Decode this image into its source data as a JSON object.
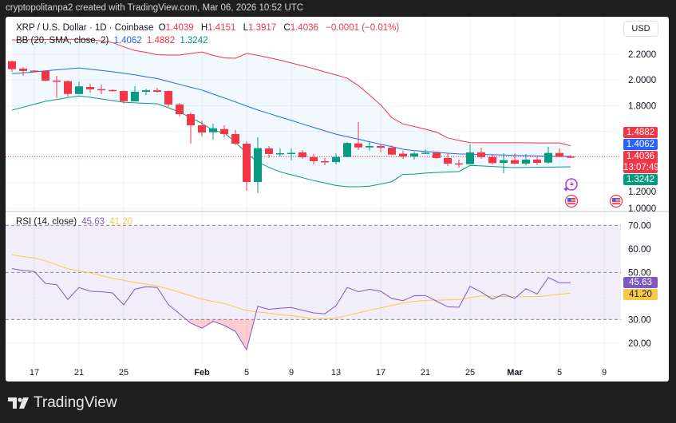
{
  "header": {
    "credit": "cryptopolitanpa2 created with TradingView.com, Mar 06, 2026 10:52 UTC"
  },
  "legend": {
    "symbol": "XRP / U.S. Dollar · 1D · Coinbase",
    "o_label": "O",
    "o": "1.4039",
    "h_label": "H",
    "h": "1.4151",
    "l_label": "L",
    "l": "1.3917",
    "c_label": "C",
    "c": "1.4036",
    "change": "−0.0001 (−0.01%)",
    "bb_label": "BB (20, SMA, close, 2)",
    "bb_basis": "1.4062",
    "bb_upper": "1.4882",
    "bb_lower": "1.3242",
    "rsi_label": "RSI (14, close)",
    "rsi_value": "45.63",
    "rsi_ma": "41.20"
  },
  "currency_button": "USD",
  "price_axis": {
    "ticks": [
      "2.2000",
      "2.0000",
      "1.8000",
      "1.2000",
      "1.0000"
    ]
  },
  "rsi_axis": {
    "ticks": [
      "70.00",
      "60.00",
      "50.00",
      "30.00",
      "20.00"
    ]
  },
  "badges": {
    "bb_upper": "1.4882",
    "bb_basis": "1.4062",
    "last_price": "1.4036",
    "countdown": "13:07:49",
    "bb_lower": "1.3242",
    "rsi": "45.63",
    "rsi_ma": "41.20"
  },
  "time_axis": [
    {
      "label": "17",
      "date": "2026-01-17"
    },
    {
      "label": "21",
      "date": "2026-01-21"
    },
    {
      "label": "25",
      "date": "2026-01-25"
    },
    {
      "label": "Feb",
      "date": "2026-02-01",
      "bold": true
    },
    {
      "label": "5",
      "date": "2026-02-05"
    },
    {
      "label": "9",
      "date": "2026-02-09"
    },
    {
      "label": "13",
      "date": "2026-02-13"
    },
    {
      "label": "17",
      "date": "2026-02-17"
    },
    {
      "label": "21",
      "date": "2026-02-21"
    },
    {
      "label": "25",
      "date": "2026-02-25"
    },
    {
      "label": "Mar",
      "date": "2026-03-01",
      "bold": true
    },
    {
      "label": "5",
      "date": "2026-03-05"
    },
    {
      "label": "9",
      "date": "2026-03-09"
    }
  ],
  "event_icons": [
    "lightning-event-icon",
    "us-flag-event-icon",
    "us-flag-event-icon"
  ],
  "brand": "TradingView",
  "colors": {
    "up": "#089981",
    "down": "#f23645",
    "bb_basis": "#2962ff",
    "bb_upper": "#f23645",
    "bb_lower": "#089981",
    "rsi": "#7e57c2",
    "rsi_ma": "#f7c948"
  },
  "chart_data": {
    "type": "candlestick",
    "price_range": [
      1.0,
      2.2
    ],
    "rsi_range": [
      10,
      80
    ],
    "rsi_bands": [
      70,
      50,
      30
    ],
    "candles": [
      {
        "date": "2026-01-15",
        "o": 2.146,
        "h": 2.15,
        "l": 2.063,
        "c": 2.084
      },
      {
        "date": "2026-01-16",
        "o": 2.088,
        "h": 2.101,
        "l": 2.032,
        "c": 2.07
      },
      {
        "date": "2026-01-17",
        "o": 2.073,
        "h": 2.076,
        "l": 2.06,
        "c": 2.066
      },
      {
        "date": "2026-01-18",
        "o": 2.07,
        "h": 2.07,
        "l": 1.989,
        "c": 1.995
      },
      {
        "date": "2026-01-19",
        "o": 1.995,
        "h": 2.032,
        "l": 1.86,
        "c": 1.989
      },
      {
        "date": "2026-01-20",
        "o": 1.991,
        "h": 1.995,
        "l": 1.871,
        "c": 1.891
      },
      {
        "date": "2026-01-21",
        "o": 1.891,
        "h": 1.987,
        "l": 1.888,
        "c": 1.95
      },
      {
        "date": "2026-01-22",
        "o": 1.945,
        "h": 1.97,
        "l": 1.902,
        "c": 1.927
      },
      {
        "date": "2026-01-23",
        "o": 1.929,
        "h": 1.964,
        "l": 1.889,
        "c": 1.925
      },
      {
        "date": "2026-01-24",
        "o": 1.922,
        "h": 1.927,
        "l": 1.908,
        "c": 1.914
      },
      {
        "date": "2026-01-25",
        "o": 1.914,
        "h": 1.92,
        "l": 1.815,
        "c": 1.835
      },
      {
        "date": "2026-01-26",
        "o": 1.834,
        "h": 1.952,
        "l": 1.834,
        "c": 1.908
      },
      {
        "date": "2026-01-27",
        "o": 1.908,
        "h": 1.933,
        "l": 1.883,
        "c": 1.92
      },
      {
        "date": "2026-01-28",
        "o": 1.92,
        "h": 1.939,
        "l": 1.902,
        "c": 1.908
      },
      {
        "date": "2026-01-29",
        "o": 1.914,
        "h": 1.92,
        "l": 1.79,
        "c": 1.809
      },
      {
        "date": "2026-01-30",
        "o": 1.809,
        "h": 1.821,
        "l": 1.716,
        "c": 1.734
      },
      {
        "date": "2026-01-31",
        "o": 1.734,
        "h": 1.747,
        "l": 1.504,
        "c": 1.647
      },
      {
        "date": "2026-02-01",
        "o": 1.647,
        "h": 1.684,
        "l": 1.56,
        "c": 1.591
      },
      {
        "date": "2026-02-02",
        "o": 1.593,
        "h": 1.66,
        "l": 1.536,
        "c": 1.624
      },
      {
        "date": "2026-02-03",
        "o": 1.618,
        "h": 1.647,
        "l": 1.554,
        "c": 1.579
      },
      {
        "date": "2026-02-04",
        "o": 1.579,
        "h": 1.61,
        "l": 1.492,
        "c": 1.504
      },
      {
        "date": "2026-02-05",
        "o": 1.504,
        "h": 1.523,
        "l": 1.138,
        "c": 1.206
      },
      {
        "date": "2026-02-06",
        "o": 1.206,
        "h": 1.554,
        "l": 1.119,
        "c": 1.469
      },
      {
        "date": "2026-02-07",
        "o": 1.467,
        "h": 1.486,
        "l": 1.393,
        "c": 1.424
      },
      {
        "date": "2026-02-08",
        "o": 1.424,
        "h": 1.467,
        "l": 1.405,
        "c": 1.43
      },
      {
        "date": "2026-02-09",
        "o": 1.43,
        "h": 1.467,
        "l": 1.374,
        "c": 1.433
      },
      {
        "date": "2026-02-10",
        "o": 1.436,
        "h": 1.455,
        "l": 1.386,
        "c": 1.399
      },
      {
        "date": "2026-02-11",
        "o": 1.399,
        "h": 1.424,
        "l": 1.343,
        "c": 1.368
      },
      {
        "date": "2026-02-12",
        "o": 1.368,
        "h": 1.393,
        "l": 1.337,
        "c": 1.361
      },
      {
        "date": "2026-02-13",
        "o": 1.361,
        "h": 1.43,
        "l": 1.343,
        "c": 1.401
      },
      {
        "date": "2026-02-14",
        "o": 1.401,
        "h": 1.517,
        "l": 1.399,
        "c": 1.509
      },
      {
        "date": "2026-02-15",
        "o": 1.506,
        "h": 1.672,
        "l": 1.455,
        "c": 1.475
      },
      {
        "date": "2026-02-16",
        "o": 1.475,
        "h": 1.517,
        "l": 1.449,
        "c": 1.486
      },
      {
        "date": "2026-02-17",
        "o": 1.486,
        "h": 1.498,
        "l": 1.436,
        "c": 1.473
      },
      {
        "date": "2026-02-18",
        "o": 1.473,
        "h": 1.492,
        "l": 1.417,
        "c": 1.419
      },
      {
        "date": "2026-02-19",
        "o": 1.426,
        "h": 1.449,
        "l": 1.386,
        "c": 1.405
      },
      {
        "date": "2026-02-20",
        "o": 1.405,
        "h": 1.442,
        "l": 1.38,
        "c": 1.428
      },
      {
        "date": "2026-02-21",
        "o": 1.428,
        "h": 1.461,
        "l": 1.424,
        "c": 1.434
      },
      {
        "date": "2026-02-22",
        "o": 1.434,
        "h": 1.436,
        "l": 1.386,
        "c": 1.393
      },
      {
        "date": "2026-02-23",
        "o": 1.393,
        "h": 1.43,
        "l": 1.33,
        "c": 1.349
      },
      {
        "date": "2026-02-24",
        "o": 1.351,
        "h": 1.38,
        "l": 1.318,
        "c": 1.349
      },
      {
        "date": "2026-02-25",
        "o": 1.345,
        "h": 1.498,
        "l": 1.343,
        "c": 1.436
      },
      {
        "date": "2026-02-26",
        "o": 1.436,
        "h": 1.473,
        "l": 1.386,
        "c": 1.4
      },
      {
        "date": "2026-02-27",
        "o": 1.4,
        "h": 1.424,
        "l": 1.343,
        "c": 1.353
      },
      {
        "date": "2026-02-28",
        "o": 1.355,
        "h": 1.43,
        "l": 1.274,
        "c": 1.376
      },
      {
        "date": "2026-03-01",
        "o": 1.376,
        "h": 1.43,
        "l": 1.343,
        "c": 1.349
      },
      {
        "date": "2026-03-02",
        "o": 1.349,
        "h": 1.424,
        "l": 1.337,
        "c": 1.38
      },
      {
        "date": "2026-03-03",
        "o": 1.38,
        "h": 1.399,
        "l": 1.337,
        "c": 1.355
      },
      {
        "date": "2026-03-04",
        "o": 1.357,
        "h": 1.48,
        "l": 1.349,
        "c": 1.432
      },
      {
        "date": "2026-03-05",
        "o": 1.432,
        "h": 1.467,
        "l": 1.399,
        "c": 1.404
      },
      {
        "date": "2026-03-06",
        "o": 1.4039,
        "h": 1.4151,
        "l": 1.3917,
        "c": 1.4036
      }
    ],
    "last_price": 1.4036,
    "bb_basis": [
      2.049,
      2.056,
      2.063,
      2.071,
      2.079,
      2.086,
      2.094,
      2.084,
      2.074,
      2.064,
      2.053,
      2.04,
      2.025,
      2.011,
      1.988,
      1.966,
      1.943,
      1.922,
      1.89,
      1.86,
      1.829,
      1.797,
      1.766,
      1.739,
      1.712,
      1.685,
      1.658,
      1.631,
      1.604,
      1.578,
      1.558,
      1.539,
      1.519,
      1.5,
      1.481,
      1.461,
      1.45,
      1.444,
      1.437,
      1.43,
      1.424,
      1.422,
      1.42,
      1.418,
      1.416,
      1.413,
      1.411,
      1.409,
      1.407,
      1.405,
      1.4062
    ],
    "bb_upper": [
      2.312,
      2.312,
      2.313,
      2.314,
      2.315,
      2.316,
      2.317,
      2.315,
      2.304,
      2.291,
      2.258,
      2.229,
      2.215,
      2.197,
      2.194,
      2.194,
      2.206,
      2.218,
      2.191,
      2.172,
      2.169,
      2.207,
      2.191,
      2.173,
      2.154,
      2.132,
      2.11,
      2.088,
      2.063,
      2.039,
      2.014,
      1.956,
      1.883,
      1.806,
      1.706,
      1.658,
      1.638,
      1.617,
      1.594,
      1.549,
      1.529,
      1.512,
      1.511,
      1.511,
      1.511,
      1.511,
      1.511,
      1.51,
      1.51,
      1.51,
      1.4882
    ],
    "bb_lower": [
      1.765,
      1.788,
      1.811,
      1.834,
      1.848,
      1.863,
      1.876,
      1.865,
      1.852,
      1.84,
      1.827,
      1.822,
      1.818,
      1.815,
      1.784,
      1.75,
      1.706,
      1.662,
      1.607,
      1.588,
      1.515,
      1.43,
      1.36,
      1.32,
      1.285,
      1.262,
      1.24,
      1.217,
      1.198,
      1.179,
      1.169,
      1.169,
      1.173,
      1.19,
      1.209,
      1.265,
      1.268,
      1.275,
      1.28,
      1.284,
      1.287,
      1.335,
      1.331,
      1.327,
      1.322,
      1.318,
      1.32,
      1.321,
      1.322,
      1.323,
      1.3242
    ],
    "rsi": [
      51.6,
      50.8,
      50.4,
      45.3,
      44.8,
      38.5,
      43.6,
      42.0,
      41.8,
      41.3,
      36.2,
      42.9,
      43.9,
      43.6,
      36.3,
      32.4,
      28.4,
      26.3,
      29.2,
      27.5,
      24.9,
      17.1,
      35.6,
      34.3,
      34.8,
      35.1,
      33.9,
      32.8,
      32.4,
      35.8,
      43.6,
      41.8,
      42.8,
      42.0,
      38.9,
      38.0,
      40.1,
      40.2,
      37.8,
      35.4,
      35.2,
      44.1,
      41.6,
      38.6,
      40.7,
      39.0,
      43.1,
      40.8,
      47.8,
      45.6,
      45.63
    ],
    "rsi_ma": [
      57.5,
      56.7,
      56.1,
      54.9,
      53.2,
      51.6,
      50.6,
      49.8,
      48.6,
      47.5,
      46.6,
      45.8,
      45.0,
      44.2,
      43.0,
      41.6,
      40.1,
      38.6,
      37.7,
      36.8,
      35.3,
      33.8,
      33.2,
      32.7,
      32.0,
      31.6,
      31.0,
      30.2,
      30.3,
      30.6,
      31.7,
      32.8,
      33.9,
      34.9,
      36.0,
      37.1,
      37.7,
      38.1,
      38.2,
      38.3,
      38.4,
      39.3,
      40.0,
      39.9,
      39.7,
      39.7,
      39.7,
      39.7,
      40.2,
      40.7,
      41.2
    ]
  }
}
